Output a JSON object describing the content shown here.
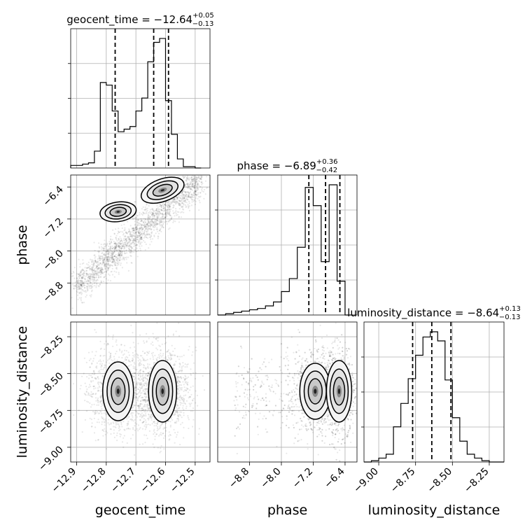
{
  "chart_data": {
    "type": "corner",
    "parameters": [
      "geocent_time",
      "phase",
      "luminosity_distance"
    ],
    "diagonal": [
      {
        "name": "geocent_time",
        "title_prefix": "geocent_time = ",
        "median": "−12.64",
        "plus": "+0.05",
        "minus": "−0.13",
        "range": [
          -12.92,
          -12.45
        ],
        "quantiles": [
          -12.77,
          -12.64,
          -12.59
        ],
        "hist_x": [
          -12.92,
          -12.9,
          -12.88,
          -12.86,
          -12.84,
          -12.82,
          -12.8,
          -12.78,
          -12.76,
          -12.74,
          -12.72,
          -12.7,
          -12.68,
          -12.66,
          -12.64,
          -12.62,
          -12.6,
          -12.58,
          -12.56,
          -12.54,
          -12.52,
          -12.5,
          -12.48
        ],
        "hist_counts": [
          0.02,
          0.02,
          0.03,
          0.04,
          0.13,
          0.66,
          0.64,
          0.44,
          0.28,
          0.3,
          0.32,
          0.44,
          0.54,
          0.82,
          0.97,
          1.0,
          0.52,
          0.26,
          0.07,
          0.01,
          0.01,
          0.0
        ]
      },
      {
        "name": "phase",
        "title_prefix": "phase = ",
        "median": "−6.89",
        "plus": "+0.36",
        "minus": "−0.42",
        "range": [
          -9.6,
          -6.1
        ],
        "quantiles": [
          -7.31,
          -6.89,
          -6.53
        ],
        "hist_x": [
          -9.6,
          -9.4,
          -9.2,
          -9.0,
          -8.8,
          -8.6,
          -8.4,
          -8.2,
          -8.0,
          -7.8,
          -7.6,
          -7.4,
          -7.2,
          -7.0,
          -6.8,
          -6.6,
          -6.4,
          -6.2
        ],
        "hist_counts": [
          0.0,
          0.01,
          0.02,
          0.03,
          0.04,
          0.05,
          0.07,
          0.1,
          0.18,
          0.28,
          0.52,
          0.98,
          0.84,
          0.41,
          1.0,
          0.26,
          0.0
        ]
      },
      {
        "name": "luminosity_distance",
        "title_prefix": "luminosity_distance = ",
        "median": "−8.64",
        "plus": "+0.13",
        "minus": "−0.13",
        "range": [
          -9.1,
          -8.15
        ],
        "quantiles": [
          -8.77,
          -8.64,
          -8.51
        ],
        "hist_x": [
          -9.1,
          -9.05,
          -9.0,
          -8.95,
          -8.9,
          -8.85,
          -8.8,
          -8.75,
          -8.7,
          -8.65,
          -8.6,
          -8.55,
          -8.5,
          -8.45,
          -8.4,
          -8.35,
          -8.3,
          -8.25,
          -8.2,
          -8.15
        ],
        "hist_counts": [
          0.0,
          0.01,
          0.03,
          0.06,
          0.27,
          0.45,
          0.64,
          0.82,
          0.96,
          1.0,
          0.93,
          0.63,
          0.34,
          0.16,
          0.06,
          0.03,
          0.01,
          0.0,
          0.0
        ]
      }
    ],
    "pairs": [
      {
        "x": "geocent_time",
        "y": "phase",
        "scatter": "linear band rising from (-12.9,-8.9) to (-12.5,-6.3)",
        "modes": [
          {
            "x": -12.75,
            "y": -7.0
          },
          {
            "x": -12.6,
            "y": -6.45
          }
        ]
      },
      {
        "x": "geocent_time",
        "y": "luminosity_distance",
        "modes": [
          {
            "x": -12.76,
            "y": -8.62
          },
          {
            "x": -12.61,
            "y": -8.62
          }
        ]
      },
      {
        "x": "phase",
        "y": "luminosity_distance",
        "modes": [
          {
            "x": -7.15,
            "y": -8.62
          },
          {
            "x": -6.55,
            "y": -8.62
          }
        ]
      }
    ],
    "axes": {
      "geocent_time": {
        "ticks": [
          -12.9,
          -12.8,
          -12.7,
          -12.6,
          -12.5
        ],
        "tick_labels": [
          "−12.9",
          "−12.8",
          "−12.7",
          "−12.6",
          "−12.5"
        ]
      },
      "phase": {
        "ticks": [
          -8.8,
          -8.0,
          -7.2,
          -6.4
        ],
        "tick_labels": [
          "−8.8",
          "−8.0",
          "−7.2",
          "−6.4"
        ]
      },
      "luminosity_distance": {
        "ticks": [
          -9.0,
          -8.75,
          -8.5,
          -8.25
        ],
        "tick_labels": [
          "−9.00",
          "−8.75",
          "−8.50",
          "−8.25"
        ]
      }
    },
    "xlabels": [
      "geocent_time",
      "phase",
      "luminosity_distance"
    ],
    "ylabels": [
      "",
      "phase",
      "luminosity_distance"
    ],
    "grid": true
  }
}
